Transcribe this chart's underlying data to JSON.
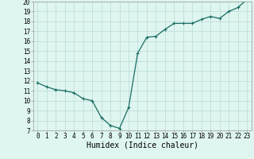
{
  "x": [
    0,
    1,
    2,
    3,
    4,
    5,
    6,
    7,
    8,
    9,
    10,
    11,
    12,
    13,
    14,
    15,
    16,
    17,
    18,
    19,
    20,
    21,
    22,
    23
  ],
  "y": [
    11.8,
    11.4,
    11.1,
    11.0,
    10.8,
    10.2,
    10.0,
    8.3,
    7.5,
    7.2,
    9.3,
    14.8,
    16.4,
    16.5,
    17.2,
    17.8,
    17.8,
    17.8,
    18.2,
    18.5,
    18.3,
    19.0,
    19.4,
    20.2
  ],
  "line_color": "#1a6e62",
  "marker": "+",
  "marker_size": 3.5,
  "marker_linewidth": 0.8,
  "bg_color": "#dff5f0",
  "grid_color": "#b8dbd6",
  "xlabel": "Humidex (Indice chaleur)",
  "xlim": [
    -0.5,
    23.5
  ],
  "ylim": [
    7,
    20
  ],
  "yticks": [
    7,
    8,
    9,
    10,
    11,
    12,
    13,
    14,
    15,
    16,
    17,
    18,
    19,
    20
  ],
  "xticks": [
    0,
    1,
    2,
    3,
    4,
    5,
    6,
    7,
    8,
    9,
    10,
    11,
    12,
    13,
    14,
    15,
    16,
    17,
    18,
    19,
    20,
    21,
    22,
    23
  ],
  "tick_label_fontsize": 5.5,
  "xlabel_fontsize": 7.0,
  "linewidth": 0.9
}
